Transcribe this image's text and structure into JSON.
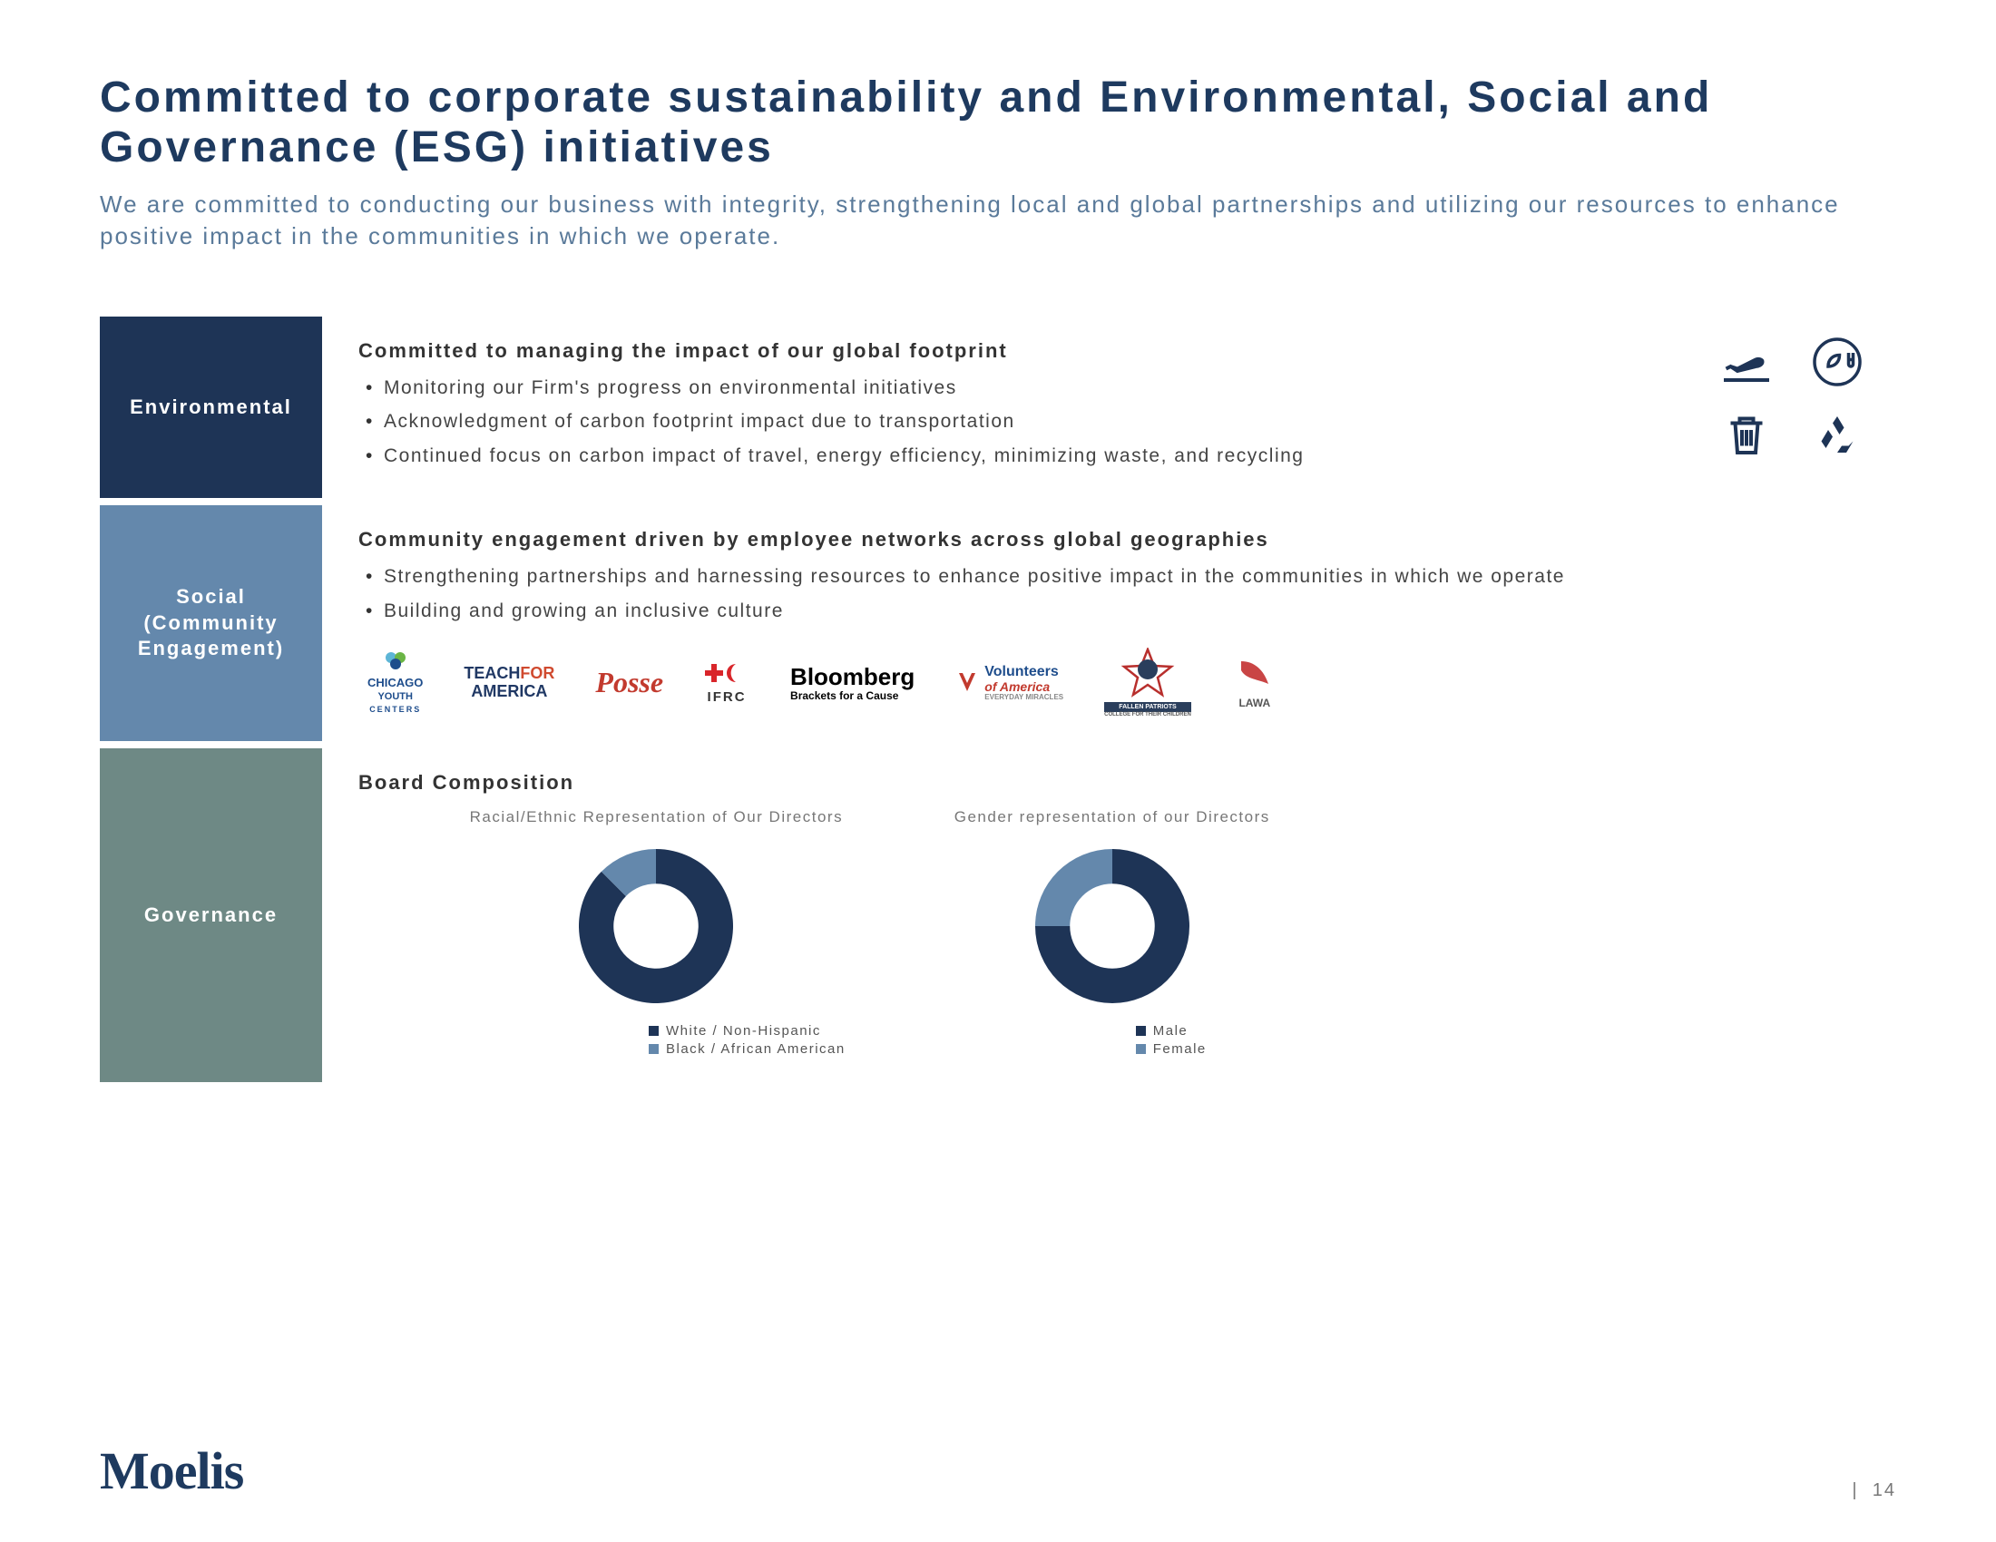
{
  "title": "Committed to corporate sustainability and Environmental, Social and Governance (ESG) initiatives",
  "subtitle": "We are committed to conducting our business with integrity, strengthening local and global partnerships and utilizing our resources to enhance positive impact in the communities in which we operate.",
  "sections": {
    "environmental": {
      "label": "Environmental",
      "label_bg": "#1e3456",
      "heading": "Committed to managing the impact of our global footprint",
      "bullets": [
        "Monitoring our Firm's progress on environmental initiatives",
        "Acknowledgment of carbon footprint impact due to transportation",
        "Continued focus on carbon impact of travel, energy efficiency, minimizing waste, and recycling"
      ],
      "icons": [
        "plane-takeoff",
        "leaf-plug",
        "trash",
        "recycle"
      ]
    },
    "social": {
      "label": "Social (Community Engagement)",
      "label_bg": "#6488ac",
      "heading": "Community engagement driven by employee networks across global geographies",
      "bullets": [
        "Strengthening partnerships and harnessing resources to enhance positive impact in the communities in which we operate",
        "Building and growing an inclusive culture"
      ],
      "partners": [
        {
          "name": "Chicago Youth Centers",
          "color1": "#5db5d6",
          "color2": "#6bb545"
        },
        {
          "name_line1": "TEACHFOR",
          "name_line2": "AMERICA",
          "color1": "#203864",
          "color2": "#d04a2f"
        },
        {
          "name": "Posse",
          "color": "#c23a2e"
        },
        {
          "name": "IFRC",
          "color": "#d9252a"
        },
        {
          "name_line1": "Bloomberg",
          "name_line2": "Brackets for a Cause",
          "color": "#000000"
        },
        {
          "name_line1": "Volunteers",
          "name_line2": "of America",
          "color1": "#c23a2e",
          "color2": "#1e4d8c"
        },
        {
          "name": "Fallen Patriots",
          "color": "#b82f2d"
        },
        {
          "name": "LAWA",
          "color": "#c94545"
        }
      ]
    },
    "governance": {
      "label": "Governance",
      "label_bg": "#6e8985",
      "heading": "Board Composition",
      "charts": [
        {
          "title": "Racial/Ethnic Representation of Our Directors",
          "type": "donut",
          "segments": [
            {
              "label": "White / Non-Hispanic",
              "value": 87.5,
              "color": "#1e3456"
            },
            {
              "label": "Black / African American",
              "value": 12.5,
              "color": "#6488ac"
            }
          ],
          "inner_ratio": 0.55,
          "bg": "#ffffff"
        },
        {
          "title": "Gender representation of our Directors",
          "type": "donut",
          "segments": [
            {
              "label": "Male",
              "value": 75,
              "color": "#1e3456"
            },
            {
              "label": "Female",
              "value": 25,
              "color": "#6488ac"
            }
          ],
          "inner_ratio": 0.55,
          "bg": "#ffffff"
        }
      ]
    }
  },
  "footer": {
    "brand": "Moelis",
    "page_sep": "|",
    "page_number": "14"
  },
  "colors": {
    "title": "#1e3a5f",
    "subtitle": "#5a7a9a",
    "body_text": "#444444",
    "icon_stroke": "#1e3456"
  }
}
